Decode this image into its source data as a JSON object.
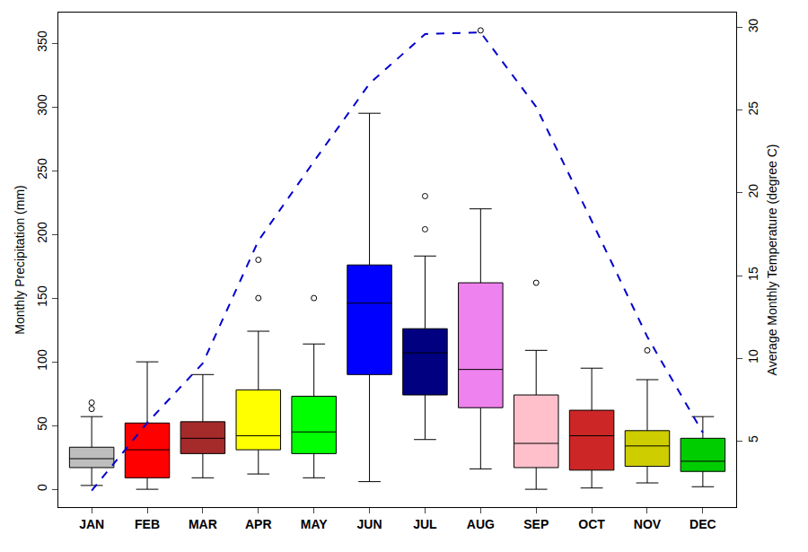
{
  "chart_data": {
    "type": "box",
    "categories": [
      "JAN",
      "FEB",
      "MAR",
      "APR",
      "MAY",
      "JUN",
      "JUL",
      "AUG",
      "SEP",
      "OCT",
      "NOV",
      "DEC"
    ],
    "ylabel": "Monthly Precipitation (mm)",
    "y2label": "Average Monthly Temperature (degree C)",
    "boxes": {
      "lower": [
        3,
        0,
        9,
        12,
        9,
        6,
        39,
        16,
        0,
        1,
        5,
        2
      ],
      "q1": [
        17,
        9,
        28,
        31,
        28,
        90,
        74,
        64,
        17,
        15,
        18,
        14
      ],
      "median": [
        24,
        31,
        40,
        42,
        45,
        146,
        107,
        94,
        36,
        42,
        34,
        22
      ],
      "q3": [
        33,
        52,
        53,
        78,
        73,
        176,
        126,
        162,
        74,
        62,
        46,
        40
      ],
      "upper": [
        57,
        100,
        90,
        124,
        114,
        295,
        183,
        220,
        109,
        95,
        86,
        57
      ],
      "outliers": [
        [
          63,
          68
        ],
        [],
        [],
        [
          150,
          180
        ],
        [
          150
        ],
        [],
        [
          204,
          230
        ],
        [
          360
        ],
        [
          162
        ],
        [],
        [
          109
        ],
        []
      ]
    },
    "colors": [
      "#bebebe",
      "#ff0000",
      "#a52a2a",
      "#ffff00",
      "#00ff00",
      "#0000ff",
      "#000080",
      "#ee82ee",
      "#ffc0cb",
      "#cd2626",
      "#cdcd00",
      "#00cd00"
    ],
    "temperature": {
      "axis": "y2",
      "type": "line",
      "line_style": "dash",
      "color": "#0000cd",
      "values": [
        2.0,
        6.1,
        9.7,
        17.1,
        21.9,
        26.6,
        29.6,
        29.7,
        25.2,
        18.3,
        11.3,
        5.5
      ]
    },
    "ylim": [
      -14,
      374
    ],
    "yticks": [
      0,
      50,
      100,
      150,
      200,
      250,
      300,
      350
    ],
    "y2lim": [
      1,
      30.9
    ],
    "y2ticks": [
      5,
      10,
      15,
      20,
      25,
      30
    ],
    "grid": false
  }
}
